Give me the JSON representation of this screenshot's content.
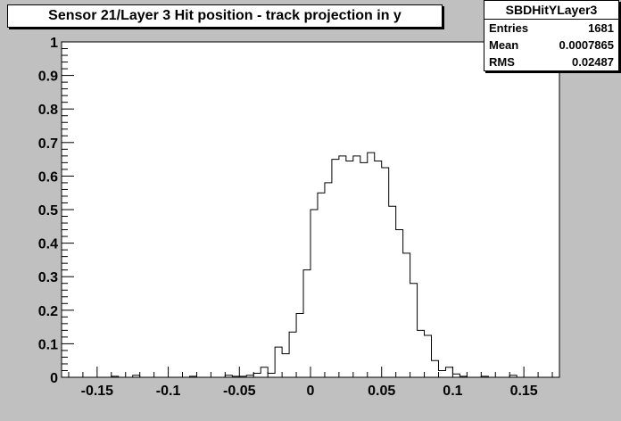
{
  "chart_data": {
    "type": "histogram",
    "title": "Sensor 21/Layer 3 Hit position - track projection in y",
    "xlabel": "",
    "ylabel": "",
    "xlim": [
      -0.175,
      0.175
    ],
    "ylim": [
      0,
      1
    ],
    "x_ticks": [
      -0.15,
      -0.1,
      -0.05,
      0,
      0.05,
      0.1,
      0.15
    ],
    "x_tick_labels": [
      "-0.15",
      "-0.1",
      "-0.05",
      "0",
      "0.05",
      "0.1",
      "0.15"
    ],
    "y_ticks": [
      0,
      0.1,
      0.2,
      0.3,
      0.4,
      0.5,
      0.6,
      0.7,
      0.8,
      0.9,
      1
    ],
    "y_tick_labels": [
      "0",
      "0.1",
      "0.2",
      "0.3",
      "0.4",
      "0.5",
      "0.6",
      "0.7",
      "0.8",
      "0.9",
      "1"
    ],
    "bin_width": 0.005,
    "bin_start": -0.175,
    "values": [
      0,
      0,
      0,
      0,
      0,
      0,
      0,
      0.003,
      0,
      0,
      0.006,
      0,
      0,
      0,
      0,
      0,
      0,
      0,
      0.003,
      0,
      0,
      0,
      0,
      0.006,
      0.003,
      0.003,
      0.006,
      0.012,
      0.03,
      0.012,
      0.09,
      0.07,
      0.135,
      0.19,
      0.32,
      0.5,
      0.55,
      0.58,
      0.65,
      0.66,
      0.645,
      0.66,
      0.64,
      0.67,
      0.645,
      0.625,
      0.51,
      0.44,
      0.37,
      0.28,
      0.14,
      0.125,
      0.05,
      0.02,
      0.03,
      0.01,
      0.003,
      0,
      0,
      0.003,
      0,
      0,
      0,
      0.006,
      0,
      0,
      0,
      0,
      0,
      0
    ]
  },
  "stats": {
    "name": "SBDHitYLayer3",
    "entries_label": "Entries",
    "entries_value": "1681",
    "mean_label": "Mean",
    "mean_value": "0.0007865",
    "rms_label": "RMS",
    "rms_value": "0.02487"
  }
}
